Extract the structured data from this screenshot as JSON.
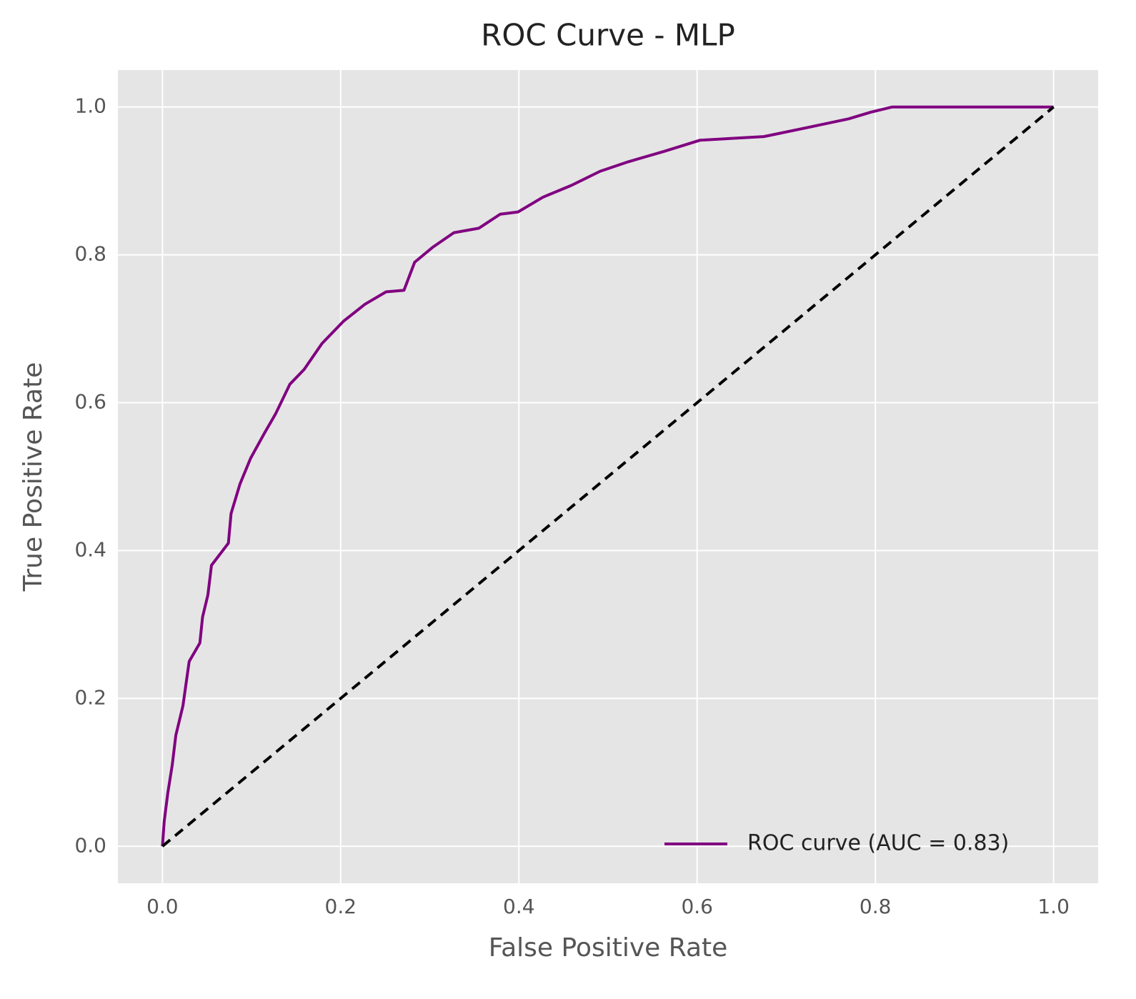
{
  "chart_data": {
    "type": "line",
    "title": "ROC Curve - MLP",
    "xlabel": "False Positive Rate",
    "ylabel": "True Positive Rate",
    "xlim": [
      -0.05,
      1.05
    ],
    "ylim": [
      -0.05,
      1.05
    ],
    "xticks": [
      {
        "value": 0,
        "label": "0.0"
      },
      0.2,
      0.4,
      0.6,
      0.8,
      {
        "value": 1,
        "label": "1.0"
      }
    ],
    "yticks": [
      {
        "value": 0,
        "label": "0.0"
      },
      0.2,
      0.4,
      0.6,
      0.8,
      {
        "value": 1,
        "label": "1.0"
      }
    ],
    "grid": true,
    "legend": "lower right",
    "series": [
      {
        "name": "ROC curve (AUC = 0.83)",
        "color": "#800080",
        "x": [
          0,
          0.002,
          0.006,
          0.011,
          0.015,
          0.023,
          0.03,
          0.042,
          0.045,
          0.051,
          0.055,
          0.074,
          0.077,
          0.087,
          0.099,
          0.115,
          0.127,
          0.143,
          0.159,
          0.179,
          0.203,
          0.227,
          0.251,
          0.271,
          0.283,
          0.303,
          0.327,
          0.355,
          0.379,
          0.399,
          0.427,
          0.459,
          0.491,
          0.523,
          0.563,
          0.603,
          0.675,
          0.723,
          0.77,
          0.795,
          0.819,
          1
        ],
        "values": [
          0,
          0.034,
          0.072,
          0.11,
          0.15,
          0.19,
          0.25,
          0.275,
          0.31,
          0.34,
          0.38,
          0.41,
          0.45,
          0.49,
          0.525,
          0.56,
          0.585,
          0.625,
          0.645,
          0.68,
          0.71,
          0.733,
          0.75,
          0.752,
          0.79,
          0.81,
          0.83,
          0.836,
          0.855,
          0.858,
          0.878,
          0.894,
          0.913,
          0.926,
          0.94,
          0.955,
          0.96,
          0.972,
          0.984,
          0.993,
          1,
          1
        ]
      },
      {
        "color": "#000000",
        "dashed": true,
        "x": [
          0,
          1
        ],
        "values": [
          0,
          1
        ]
      }
    ]
  }
}
